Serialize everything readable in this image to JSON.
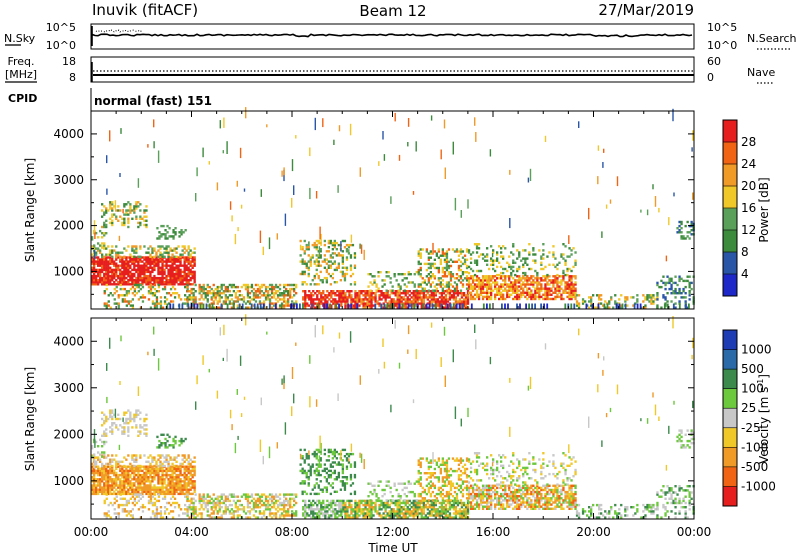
{
  "header": {
    "station": "Inuvik (fitACF)",
    "beam": "Beam 12",
    "date": "27/Mar/2019"
  },
  "sky_panel": {
    "left_label": "N.Sky",
    "left_ticks": [
      "10^5",
      "10^0"
    ],
    "right_ticks": [
      "10^5",
      "10^0"
    ],
    "right_label": "N.Search"
  },
  "freq_panel": {
    "left_label_line1": "Freq.",
    "left_label_line2": "[MHz]",
    "left_ticks": [
      "18",
      "8"
    ],
    "right_ticks": [
      "60",
      "0"
    ],
    "right_label": "Nave"
  },
  "cpid": {
    "label": "CPID",
    "value": "normal (fast) 151"
  },
  "colors": {
    "power": [
      "#1e28c8",
      "#2a56a8",
      "#3c8a3c",
      "#5aa05a",
      "#f0c828",
      "#f09a28",
      "#f06414",
      "#e61e1e"
    ],
    "velocity": [
      "#e61e1e",
      "#f06414",
      "#f09a28",
      "#f0c828",
      "#c8c8c8",
      "#6cc83c",
      "#3c8a4c",
      "#2a6aa8",
      "#1e3cb4"
    ]
  },
  "chart_data": [
    {
      "type": "heatmap",
      "variable": "power",
      "ylabel": "Slant Range [km]",
      "xlabel": "",
      "x_ticks": [
        "00:00",
        "04:00",
        "08:00",
        "12:00",
        "16:00",
        "20:00",
        "00:00"
      ],
      "xlim_hours": [
        0,
        24
      ],
      "y_ticks": [
        1000,
        2000,
        3000,
        4000
      ],
      "ylim": [
        180,
        4500
      ],
      "colorbar_label": "Power [dB]",
      "colorbar_ticks": [
        4,
        8,
        12,
        16,
        20,
        24,
        28
      ],
      "colorbar_range": [
        0,
        32
      ]
    },
    {
      "type": "heatmap",
      "variable": "velocity",
      "ylabel": "Slant Range [km]",
      "xlabel": "Time UT",
      "x_ticks": [
        "00:00",
        "04:00",
        "08:00",
        "12:00",
        "16:00",
        "20:00",
        "00:00"
      ],
      "xlim_hours": [
        0,
        24
      ],
      "y_ticks": [
        1000,
        2000,
        3000,
        4000
      ],
      "ylim": [
        180,
        4500
      ],
      "colorbar_label": "Velocity [m s",
      "colorbar_label_sup": "-1",
      "colorbar_label_end": "]",
      "colorbar_ticks": [
        "1000",
        "500",
        "100",
        "25",
        "-25",
        "-100",
        "-500",
        "-1000"
      ]
    }
  ]
}
